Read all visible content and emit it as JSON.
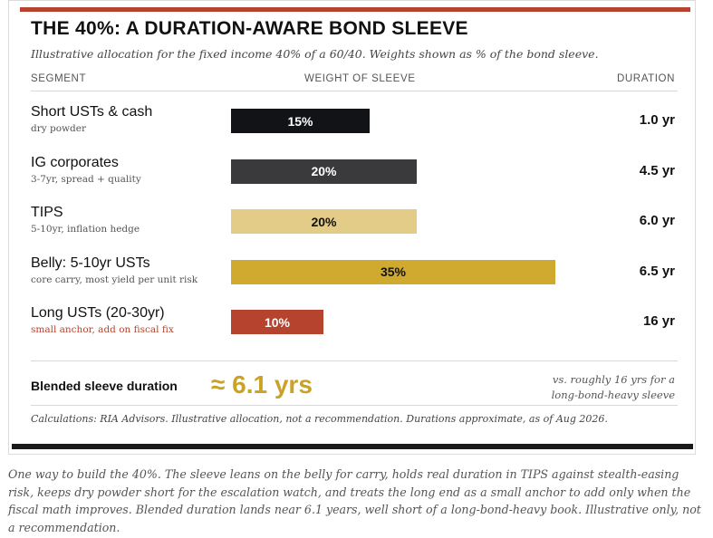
{
  "title": "THE 40%: A DURATION-AWARE BOND SLEEVE",
  "subtitle": "Illustrative allocation for the fixed income 40% of a 60/40. Weights shown as % of the bond sleeve.",
  "headers": {
    "segment": "SEGMENT",
    "weight": "WEIGHT OF SLEEVE",
    "duration": "DURATION"
  },
  "chart_data": {
    "type": "bar",
    "orientation": "horizontal",
    "categories": [
      "Short USTs & cash",
      "IG corporates",
      "TIPS",
      "Belly: 5-10yr USTs",
      "Long USTs (20-30yr)"
    ],
    "notes": [
      "dry powder",
      "3-7yr, spread + quality",
      "5-10yr, inflation hedge",
      "core carry, most yield per unit risk",
      "small anchor, add on fiscal fix"
    ],
    "values": [
      15,
      20,
      20,
      35,
      10
    ],
    "value_labels": [
      "15%",
      "20%",
      "20%",
      "35%",
      "10%"
    ],
    "durations": [
      "1.0 yr",
      "4.5 yr",
      "6.0 yr",
      "6.5 yr",
      "16 yr"
    ],
    "colors": [
      "#111317",
      "#3a3a3c",
      "#e3cc88",
      "#cfaa2e",
      "#b5432e"
    ],
    "label_colors": [
      "#ffffff",
      "#ffffff",
      "#111111",
      "#111111",
      "#ffffff"
    ],
    "xlim": [
      0,
      40
    ],
    "grid": false
  },
  "blended": {
    "label": "Blended sleeve duration",
    "value": "≈ 6.1 yrs",
    "note_line1": "vs. roughly 16 yrs for a",
    "note_line2": "long-bond-heavy sleeve"
  },
  "calculations": "Calculations: RIA Advisors. Illustrative allocation, not a recommendation. Durations approximate, as of Aug 2026.",
  "caption": "One way to build the 40%. The sleeve leans on the belly for carry, holds real duration in TIPS against stealth-easing risk, keeps dry powder short for the escalation watch, and treats the long end as a small anchor to add only when the fiscal math improves. Blended duration lands near 6.1 years, well short of a long-bond-heavy book. Illustrative only, not a recommendation.",
  "colors": {
    "accent_red": "#b5432e",
    "gold": "#c9a227",
    "dark": "#1a1a1a"
  }
}
